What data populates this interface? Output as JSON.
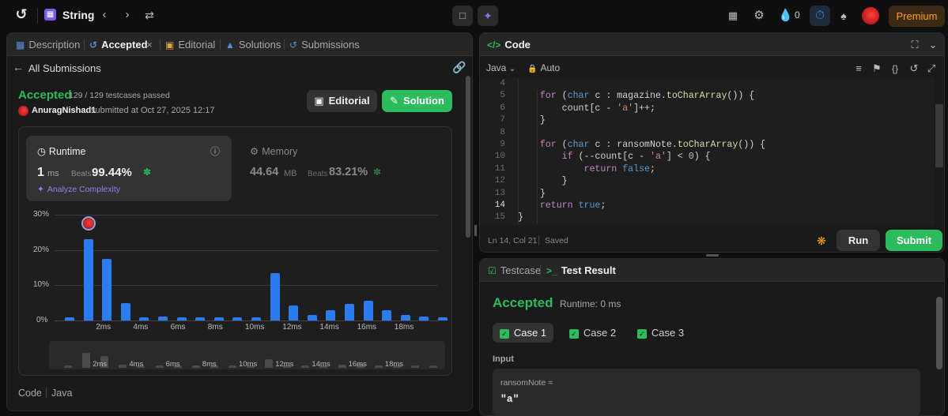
{
  "topbar": {
    "problem_list_label": "String",
    "flame_count": "0",
    "premium_label": "Premium"
  },
  "left": {
    "tabs": [
      "Description",
      "Accepted",
      "Editorial",
      "Solutions",
      "Submissions"
    ],
    "all_submissions": "All Submissions",
    "status": "Accepted",
    "testcases": "129 / 129 testcases passed",
    "user": "AnuragNishad1",
    "submitted_at": "submitted at Oct 27, 2025 12:17",
    "editorial_button": "Editorial",
    "solution_button": "Solution",
    "runtime": {
      "label": "Runtime",
      "value": "1",
      "unit": "ms",
      "beats_label": "Beats",
      "beats_value": "99.44%",
      "analyze": "Analyze Complexity"
    },
    "memory": {
      "label": "Memory",
      "value": "44.64",
      "unit": "MB",
      "beats_label": "Beats",
      "beats_value": "83.21%"
    },
    "code_label": "Code",
    "code_lang": "Java"
  },
  "chart_data": {
    "type": "bar",
    "title": "",
    "xlabel": "",
    "ylabel": "",
    "y_ticks": [
      "30%",
      "20%",
      "10%",
      "0%"
    ],
    "x_ticks": [
      "2ms",
      "4ms",
      "6ms",
      "8ms",
      "10ms",
      "12ms",
      "14ms",
      "16ms",
      "18ms"
    ],
    "ylim": [
      0,
      30
    ],
    "values": [
      0.8,
      23,
      17.5,
      5,
      0.8,
      1.2,
      0.8,
      1,
      0.8,
      0.8,
      0.8,
      13.5,
      4.2,
      1.5,
      3,
      4.8,
      5.7,
      2.8,
      1.6,
      1.2,
      0.9
    ],
    "highlight_index": 1,
    "color": "#2b7cf1"
  },
  "editor": {
    "title": "Code",
    "language": "Java",
    "mode": "Auto",
    "status_pos": "Ln 14, Col 21",
    "status_saved": "Saved",
    "run_label": "Run",
    "submit_label": "Submit",
    "line_numbers": [
      "4",
      "5",
      "6",
      "7",
      "8",
      "9",
      "10",
      "11",
      "12",
      "13",
      "14",
      "15"
    ]
  },
  "bottom": {
    "tab_testcase": "Testcase",
    "tab_result": "Test Result",
    "status": "Accepted",
    "runtime": "Runtime: 0 ms",
    "cases": [
      "Case 1",
      "Case 2",
      "Case 3"
    ],
    "input_label": "Input",
    "var_name": "ransomNote =",
    "var_value": "\"a\""
  },
  "colors": {
    "accent_green": "#2cbb5d",
    "accent_blue": "#2b7cf1",
    "premium": "#ffa116"
  }
}
